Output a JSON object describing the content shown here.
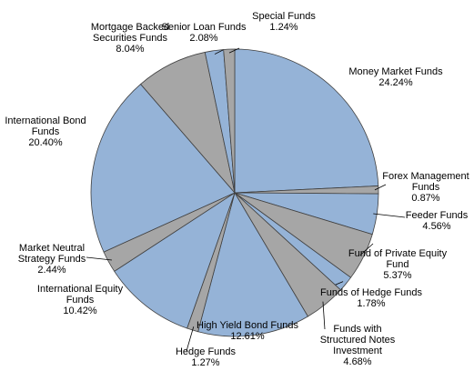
{
  "chart_data": {
    "type": "pie",
    "categories": [
      "Money Market Funds",
      "Forex Management Funds",
      "Feeder Funds",
      "Fund of Private Equity Fund",
      "Funds of Hedge Funds",
      "Funds with Structured Notes Investment",
      "High Yield Bond Funds",
      "Hedge Funds",
      "International Equity Funds",
      "Market Neutral Strategy Funds",
      "International Bond Funds",
      "Mortgage Backed Securities Funds",
      "Senior Loan Funds",
      "Special Funds"
    ],
    "values": [
      24.24,
      0.87,
      4.56,
      5.37,
      1.78,
      4.68,
      12.61,
      1.27,
      10.42,
      2.44,
      20.4,
      8.04,
      2.08,
      1.24
    ],
    "value_labels": [
      "24.24%",
      "0.87%",
      "4.56%",
      "5.37%",
      "1.78%",
      "4.68%",
      "12.61%",
      "1.27%",
      "10.42%",
      "2.44%",
      "20.40%",
      "8.04%",
      "2.08%",
      "1.24%"
    ],
    "colors": [
      "#95b3d7",
      "#a6a6a6",
      "#95b3d7",
      "#a6a6a6",
      "#95b3d7",
      "#a6a6a6",
      "#95b3d7",
      "#a6a6a6",
      "#95b3d7",
      "#a6a6a6",
      "#95b3d7",
      "#a6a6a6",
      "#95b3d7",
      "#a6a6a6"
    ]
  }
}
